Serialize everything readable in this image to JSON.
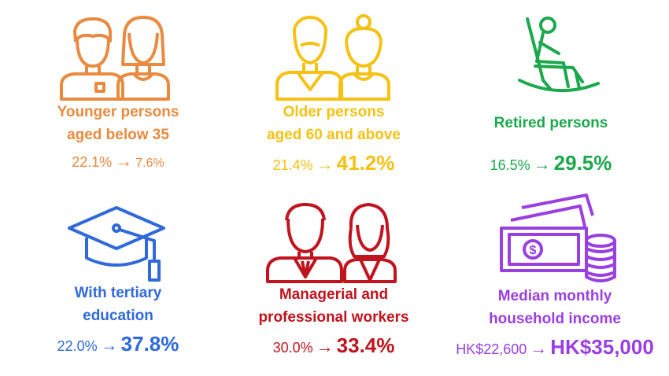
{
  "colors": {
    "young": "#E98A3F",
    "older": "#F5C112",
    "retired": "#1CA84C",
    "tertiary": "#3069D8",
    "managerial": "#C0141E",
    "income": "#9A3FE0"
  },
  "items": [
    {
      "icon": "young-couple-icon",
      "label_line1": "Younger persons",
      "label_line2": "aged below 35",
      "from": "22.1%",
      "to": "7.6%"
    },
    {
      "icon": "elderly-couple-icon",
      "label_line1": "Older persons",
      "label_line2": "aged 60 and above",
      "from": "21.4%",
      "to": "41.2%"
    },
    {
      "icon": "rocking-chair-icon",
      "label_line1": "Retired persons",
      "label_line2": "",
      "from": "16.5%",
      "to": "29.5%"
    },
    {
      "icon": "graduation-cap-icon",
      "label_line1": "With tertiary",
      "label_line2": "education",
      "from": "22.0%",
      "to": "37.8%"
    },
    {
      "icon": "business-people-icon",
      "label_line1": "Managerial and",
      "label_line2": "professional workers",
      "from": "30.0%",
      "to": "33.4%"
    },
    {
      "icon": "money-coins-icon",
      "label_line1": "Median monthly",
      "label_line2": "household income",
      "from": "HK$22,600",
      "to": "HK$35,000"
    }
  ]
}
